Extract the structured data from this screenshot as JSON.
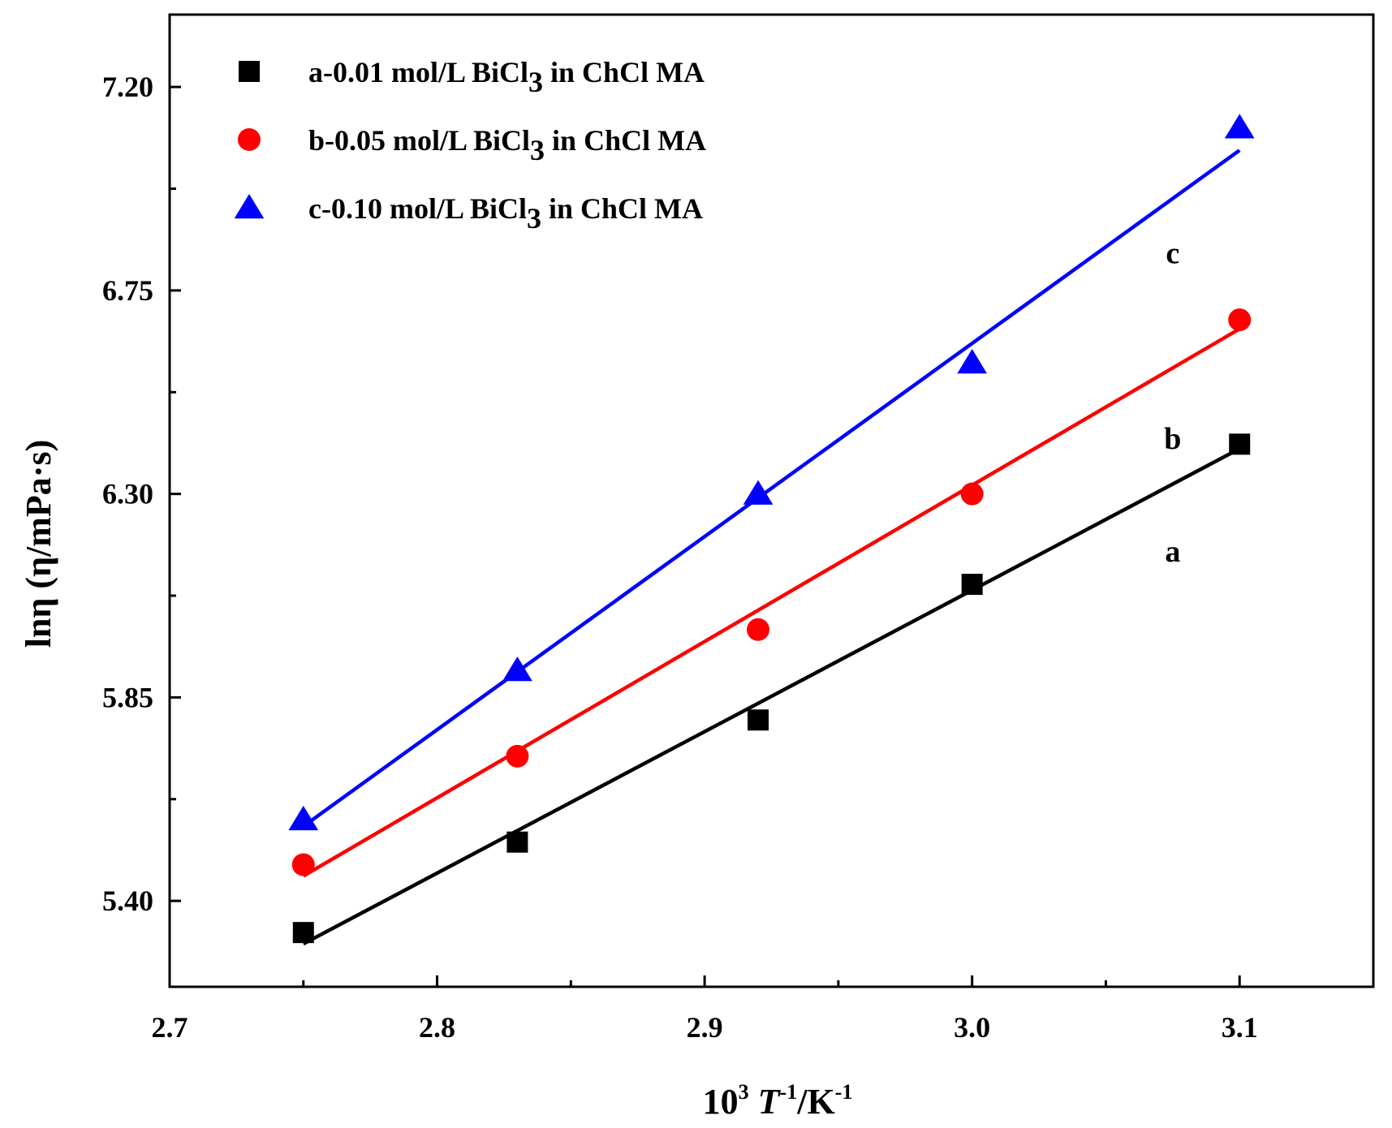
{
  "chart_data": {
    "type": "scatter",
    "title": "",
    "xlabel": {
      "base": "10",
      "exp": "3",
      "var": "T",
      "var_exp": "-1",
      "unit": "/K",
      "unit_exp": "-1"
    },
    "ylabel": "lnη (η/mPa·s)",
    "xlim": [
      2.7,
      3.15
    ],
    "ylim": [
      5.21,
      7.36
    ],
    "x_ticks": [
      2.7,
      2.8,
      2.9,
      3.0,
      3.1
    ],
    "x_tick_labels": [
      "2.7",
      "2.8",
      "2.9",
      "3.0",
      "3.1"
    ],
    "y_ticks": [
      5.4,
      5.85,
      6.3,
      6.75,
      7.2
    ],
    "y_tick_labels": [
      "5.40",
      "5.85",
      "6.30",
      "6.75",
      "7.20"
    ],
    "x_minor_ticks": [
      2.75,
      2.85,
      2.95,
      3.05
    ],
    "y_minor_ticks": [
      5.625,
      6.075,
      6.525,
      6.975
    ],
    "grid": false,
    "legend_position": "top-left",
    "series": [
      {
        "name": "a-0.01 mol/L BiCl3 in ChCl MA",
        "legend": {
          "prefix": "a-0.01 mol/L BiCl",
          "sub": "3",
          "suffix": " in ChCl MA"
        },
        "label": "a",
        "color": "#000000",
        "marker": "square",
        "x": [
          2.75,
          2.83,
          2.92,
          3.0,
          3.1
        ],
        "y": [
          5.33,
          5.53,
          5.8,
          6.1,
          6.41
        ],
        "fit": {
          "x": [
            2.75,
            3.1
          ],
          "y": [
            5.305,
            6.4
          ]
        },
        "label_pos": {
          "x": 3.075,
          "y": 6.15
        }
      },
      {
        "name": "b-0.05 mol/L BiCl3 in ChCl MA",
        "legend": {
          "prefix": "b-0.05 mol/L BiCl",
          "sub": "3",
          "suffix": " in ChCl MA"
        },
        "label": "b",
        "color": "#ff0000",
        "marker": "circle",
        "x": [
          2.75,
          2.83,
          2.92,
          3.0,
          3.1
        ],
        "y": [
          5.48,
          5.72,
          6.0,
          6.3,
          6.685
        ],
        "fit": {
          "x": [
            2.75,
            3.1
          ],
          "y": [
            5.455,
            6.665
          ]
        },
        "label_pos": {
          "x": 3.075,
          "y": 6.4
        }
      },
      {
        "name": "c-0.10 mol/L BiCl3 in ChCl MA",
        "legend": {
          "prefix": "c-0.10 mol/L BiCl",
          "sub": "3",
          "suffix": " in ChCl MA"
        },
        "label": "c",
        "color": "#0000ff",
        "marker": "triangle",
        "x": [
          2.75,
          2.83,
          2.92,
          3.0,
          3.1
        ],
        "y": [
          5.58,
          5.91,
          6.3,
          6.59,
          7.11
        ],
        "fit": {
          "x": [
            2.75,
            3.1
          ],
          "y": [
            5.565,
            7.06
          ]
        },
        "label_pos": {
          "x": 3.075,
          "y": 6.81
        }
      }
    ]
  }
}
